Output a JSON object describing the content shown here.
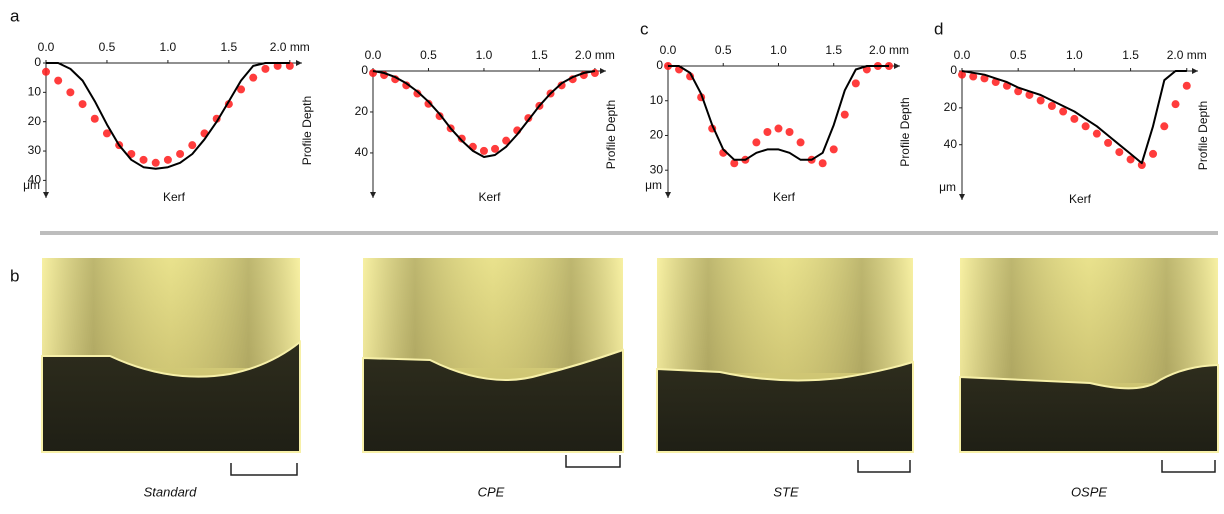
{
  "panel_labels": [
    "a",
    "b",
    "c",
    "d"
  ],
  "chart_data": [
    {
      "type": "line",
      "x": [
        0,
        0.1,
        0.2,
        0.3,
        0.4,
        0.5,
        0.6,
        0.7,
        0.8,
        0.9,
        1.0,
        1.1,
        1.2,
        1.3,
        1.4,
        1.5,
        1.6,
        1.7,
        1.8,
        1.9,
        2.0
      ],
      "xlim": [
        0,
        2.1
      ],
      "xticks": [
        {
          "value": 0,
          "label": "0.0"
        },
        0.5,
        {
          "value": 1,
          "label": "1.0"
        },
        1.5,
        {
          "value": 2,
          "label": "2.0 mm"
        }
      ],
      "ylim": [
        0,
        46
      ],
      "yticks": [
        0,
        10,
        20,
        30,
        40
      ],
      "invert_y": true,
      "xlabel": "Kerf",
      "ylabel": "Profile Depth",
      "yunit": "μm",
      "series": [
        {
          "color": "#ff1a1a",
          "style": "scatter",
          "values": [
            3,
            6,
            10,
            14,
            19,
            24,
            28,
            31,
            33,
            34,
            33,
            31,
            28,
            24,
            19,
            14,
            9,
            5,
            2,
            1,
            1
          ]
        },
        {
          "color": "#000000",
          "style": "line",
          "values": [
            0,
            0,
            2,
            6,
            13,
            21,
            28,
            33,
            35.5,
            36,
            35.5,
            34,
            31,
            26,
            20,
            13,
            6,
            1,
            0,
            0,
            0
          ]
        }
      ]
    },
    {
      "type": "line",
      "x": [
        0,
        0.1,
        0.2,
        0.3,
        0.4,
        0.5,
        0.6,
        0.7,
        0.8,
        0.9,
        1.0,
        1.1,
        1.2,
        1.3,
        1.4,
        1.5,
        1.6,
        1.7,
        1.8,
        1.9,
        2.0
      ],
      "xlim": [
        0,
        2.1
      ],
      "xticks": [
        {
          "value": 0,
          "label": "0.0"
        },
        0.5,
        {
          "value": 1,
          "label": "1.0"
        },
        1.5,
        {
          "value": 2,
          "label": "2.0 mm"
        }
      ],
      "ylim": [
        0,
        62
      ],
      "yticks": [
        0,
        20,
        40
      ],
      "invert_y": true,
      "xlabel": "Kerf",
      "ylabel": "Profile Depth",
      "series": [
        {
          "color": "#ff1a1a",
          "style": "scatter",
          "values": [
            1,
            2,
            4,
            7,
            11,
            16,
            22,
            28,
            33,
            37,
            39,
            38,
            34,
            29,
            23,
            17,
            11,
            7,
            4,
            2,
            1
          ]
        },
        {
          "color": "#000000",
          "style": "line",
          "values": [
            0,
            1,
            3,
            6,
            10,
            15,
            21,
            28,
            34,
            39,
            42,
            41,
            37,
            31,
            24,
            17,
            11,
            6,
            3,
            1,
            0
          ]
        }
      ]
    },
    {
      "type": "line",
      "x": [
        0,
        0.1,
        0.2,
        0.3,
        0.4,
        0.5,
        0.6,
        0.7,
        0.8,
        0.9,
        1.0,
        1.1,
        1.2,
        1.3,
        1.4,
        1.5,
        1.6,
        1.7,
        1.8,
        1.9,
        2.0
      ],
      "xlim": [
        0,
        2.1
      ],
      "xticks": [
        {
          "value": 0,
          "label": "0.0"
        },
        0.5,
        {
          "value": 1,
          "label": "1.0"
        },
        1.5,
        {
          "value": 2,
          "label": "2.0 mm"
        }
      ],
      "ylim": [
        0,
        38
      ],
      "yticks": [
        0,
        10,
        20,
        30
      ],
      "invert_y": true,
      "xlabel": "Kerf",
      "ylabel": "Profile Depth",
      "yunit": "μm",
      "series": [
        {
          "color": "#ff1a1a",
          "style": "scatter",
          "values": [
            0,
            1,
            3,
            9,
            18,
            25,
            28,
            27,
            22,
            19,
            18,
            19,
            22,
            27,
            28,
            24,
            14,
            5,
            1,
            0,
            0
          ]
        },
        {
          "color": "#000000",
          "style": "line",
          "values": [
            0,
            0,
            2,
            8,
            17,
            24,
            27,
            27,
            25,
            24,
            24,
            25,
            27,
            27,
            25,
            17,
            7,
            1,
            0,
            0,
            0
          ]
        }
      ]
    },
    {
      "type": "line",
      "x": [
        0,
        0.1,
        0.2,
        0.3,
        0.4,
        0.5,
        0.6,
        0.7,
        0.8,
        0.9,
        1.0,
        1.1,
        1.2,
        1.3,
        1.4,
        1.5,
        1.6,
        1.7,
        1.8,
        1.9,
        2.0
      ],
      "xlim": [
        0,
        2.1
      ],
      "xticks": [
        {
          "value": 0,
          "label": "0.0"
        },
        0.5,
        {
          "value": 1,
          "label": "1.0"
        },
        1.5,
        {
          "value": 2,
          "label": "2.0 mm"
        }
      ],
      "ylim": [
        0,
        70
      ],
      "yticks": [
        0,
        20,
        40
      ],
      "invert_y": true,
      "xlabel": "Kerf",
      "ylabel": "Profile Depth",
      "yunit": "μm",
      "series": [
        {
          "color": "#ff1a1a",
          "style": "scatter",
          "values": [
            2,
            3,
            4,
            6,
            8,
            11,
            13,
            16,
            19,
            22,
            26,
            30,
            34,
            39,
            44,
            48,
            51,
            45,
            30,
            18,
            8
          ]
        },
        {
          "color": "#000000",
          "style": "line",
          "values": [
            0,
            1,
            2,
            4,
            6,
            9,
            11,
            13,
            16,
            19,
            22,
            26,
            30,
            35,
            40,
            45,
            50,
            30,
            5,
            0,
            0
          ]
        }
      ]
    }
  ],
  "photos": [
    {
      "caption": "Standard"
    },
    {
      "caption": "CPE"
    },
    {
      "caption": "STE"
    },
    {
      "caption": "OSPE"
    }
  ]
}
